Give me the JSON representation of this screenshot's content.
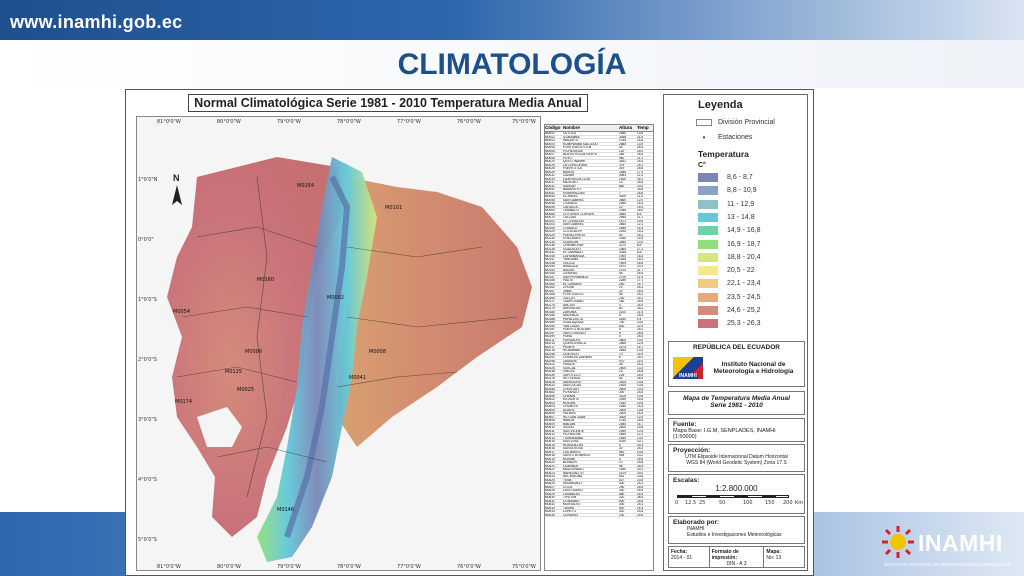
{
  "header": {
    "url": "www.inamhi.gob.ec",
    "title": "CLIMATOLOGÍA"
  },
  "map": {
    "title": "Normal Climatológica Serie 1981 - 2010 Temperatura Media Anual",
    "north_label": "N",
    "top_coords": [
      "81°0'0\"W",
      "80°0'0\"W",
      "79°0'0\"W",
      "78°0'0\"W",
      "77°0'0\"W",
      "76°0'0\"W",
      "75°0'0\"W"
    ],
    "bottom_coords": [
      "81°0'0\"W",
      "80°0'0\"W",
      "79°0'0\"W",
      "78°0'0\"W",
      "77°0'0\"W",
      "76°0'0\"W",
      "75°0'0\"W"
    ],
    "left_coords": [
      "1°0'0\"N",
      "0°0'0\"",
      "1°0'0\"S",
      "2°0'0\"S",
      "3°0'0\"S",
      "4°0'0\"S",
      "5°0'0\"S"
    ],
    "right_coords": [
      "1°0'0\"N",
      "0°0'0\"",
      "1°0'0\"S",
      "2°0'0\"S",
      "3°0'0\"S",
      "4°0'0\"S",
      "5°0'0\"S"
    ],
    "station_labels": [
      "M0101",
      "M0154",
      "M0054",
      "M0006",
      "M0008",
      "M0125",
      "M0025",
      "M0160",
      "M0146",
      "M0174",
      "M0041",
      "M0002"
    ]
  },
  "stations_table": {
    "headers": [
      "Código",
      "Nombre",
      "Altura",
      "Temp"
    ],
    "rows": [
      [
        "M0001",
        "LA TOLA",
        "2480",
        "13,5"
      ],
      [
        "M0002",
        "IZOBAMBA",
        "3058",
        "11,8"
      ],
      [
        "M0003",
        "INAQUITO",
        "2789",
        "14,6"
      ],
      [
        "M0004",
        "RUMIPAMBA SALCEDO",
        "2685",
        "13,9"
      ],
      [
        "M0005",
        "PORTOVIEJO UTM",
        "44",
        "25,4"
      ],
      [
        "M0006",
        "PICHILINGUE",
        "120",
        "25,0"
      ],
      [
        "M0007",
        "NUEVO ROCAFUERTE",
        "265",
        "25,9"
      ],
      [
        "M0008",
        "PUYO",
        "960",
        "21,2"
      ],
      [
        "M0024",
        "QUITO INAMHI",
        "2812",
        "14,0"
      ],
      [
        "M0025",
        "LA CONCORDIA",
        "379",
        "24,2"
      ],
      [
        "M0026",
        "PUERTO ILA",
        "319",
        "24,6"
      ],
      [
        "M0029",
        "BAÑOS",
        "1846",
        "17,9"
      ],
      [
        "M0031",
        "CAÑAR",
        "3083",
        "11,5"
      ],
      [
        "M0033",
        "LA ARGELIA LOJA",
        "2160",
        "16,1"
      ],
      [
        "M0037",
        "MILAGRO",
        "13",
        "25,6"
      ],
      [
        "M0041",
        "SANGAY",
        "880",
        "23,0"
      ],
      [
        "M0051",
        "BABAHOYO",
        "7",
        "25,8"
      ],
      [
        "M0052",
        "ESMERALDAS",
        "7",
        "25,6"
      ],
      [
        "M0053",
        "EL ANGEL",
        "3000",
        "11,0"
      ],
      [
        "M0056",
        "SAN GABRIEL",
        "2860",
        "12,0"
      ],
      [
        "M0058",
        "OTAVALO",
        "2550",
        "14,5"
      ],
      [
        "M0059",
        "CARACOL",
        "20",
        "25,4"
      ],
      [
        "M0063",
        "TUMBACO",
        "2348",
        "16,0"
      ],
      [
        "M0066",
        "COTOPAXI CLIRSEN",
        "3560",
        "8,6"
      ],
      [
        "M0070",
        "TULCAN",
        "2950",
        "11,1"
      ],
      [
        "M0101",
        "EL CORAZON",
        "1471",
        "19,6"
      ],
      [
        "M0103",
        "SAN GABRIEL",
        "2860",
        "12,1"
      ],
      [
        "M0105",
        "OTAVALO",
        "2550",
        "14,4"
      ],
      [
        "M0120",
        "COTACACHI",
        "2430",
        "15,3"
      ],
      [
        "M0125",
        "PUEBLOVIEJO",
        "40",
        "25,2"
      ],
      [
        "M0130",
        "CHILLANES",
        "2330",
        "14,9"
      ],
      [
        "M0133",
        "GUASLAN",
        "2850",
        "13,4"
      ],
      [
        "M0136",
        "CHIRIMICHAY",
        "3270",
        "8,9"
      ],
      [
        "M0139",
        "GUALACEO",
        "2360",
        "17,2"
      ],
      [
        "M0141",
        "EL LABRADO",
        "3335",
        "8,8"
      ],
      [
        "M0146",
        "CARIAMANGA",
        "1950",
        "18,3"
      ],
      [
        "M0147",
        "YANGANA",
        "1835",
        "19,2"
      ],
      [
        "M0148",
        "CELICA",
        "1904",
        "16,6"
      ],
      [
        "M0150",
        "AMALUZA",
        "1672",
        "20,1"
      ],
      [
        "M0153",
        "MACAS",
        "1070",
        "21,7"
      ],
      [
        "M0154",
        "CAYAPAS",
        "55",
        "25,4"
      ],
      [
        "M0157",
        "SAN FERNANDO",
        "2700",
        "11,4"
      ],
      [
        "M0158",
        "PAUTE",
        "2289",
        "17,1"
      ],
      [
        "M0160",
        "EL CARMEN",
        "250",
        "24,7"
      ],
      [
        "M0162",
        "CHONE",
        "20",
        "25,3"
      ],
      [
        "M0167",
        "JAMA",
        "20",
        "25,4"
      ],
      [
        "M0168",
        "PORTOVIEJO",
        "46",
        "25,2"
      ],
      [
        "M0169",
        "JULCUY",
        "230",
        "24,2"
      ],
      [
        "M0171",
        "CAMPOSANO",
        "160",
        "24,6"
      ],
      [
        "M0174",
        "ANCON",
        "3",
        "24,0"
      ],
      [
        "M0179",
        "ARENILLAS",
        "60",
        "25,2"
      ],
      [
        "M0180",
        "ZARUMA",
        "1100",
        "21,6"
      ],
      [
        "M0185",
        "MACHALA",
        "6",
        "25,4"
      ],
      [
        "M0188",
        "PAPALLACTA",
        "3150",
        "9,4"
      ],
      [
        "M0189",
        "GUALAQUIZA",
        "750",
        "23,0"
      ],
      [
        "M0190",
        "YANTZAZA",
        "830",
        "22,4"
      ],
      [
        "M0191",
        "PUERTO BOLIVAR",
        "5",
        "25,2"
      ],
      [
        "M0197",
        "SAN LORENZO",
        "8",
        "25,6"
      ],
      [
        "M0199",
        "PUNA",
        "5",
        "25,4"
      ],
      [
        "M0211",
        "PUNGALES",
        "2800",
        "13,0"
      ],
      [
        "M0214",
        "QUEROCHACA",
        "2865",
        "12,8"
      ],
      [
        "M0217",
        "PENIPE",
        "2475",
        "14,7"
      ],
      [
        "M0218",
        "RIOBAMBA",
        "2850",
        "13,9"
      ],
      [
        "M0258",
        "QUEVEDO",
        "70",
        "24,9"
      ],
      [
        "M0291",
        "CHARLES DARWIN",
        "6",
        "24,0"
      ],
      [
        "M0298",
        "ZAMORA",
        "970",
        "22,0"
      ],
      [
        "M0322",
        "PASAJE",
        "28",
        "25,3"
      ],
      [
        "M0326",
        "SUSCAL",
        "2600",
        "13,3"
      ],
      [
        "M0338",
        "VINCES",
        "15",
        "25,8"
      ],
      [
        "M0339",
        "ZAPOTILLO",
        "225",
        "25,4"
      ],
      [
        "M0378",
        "RIO VERDE",
        "40",
        "25,4"
      ],
      [
        "M0426",
        "SARAGURO",
        "2525",
        "13,6"
      ],
      [
        "M0432",
        "SAN LUCAS",
        "2525",
        "13,6"
      ],
      [
        "M0448",
        "CHONTALI",
        "2600",
        "13,4"
      ],
      [
        "M0482",
        "PUYANGO",
        "300",
        "24,6"
      ],
      [
        "M0496",
        "CHANIN",
        "3100",
        "10,6"
      ],
      [
        "M0502",
        "RICAURTE",
        "2390",
        "14,6"
      ],
      [
        "M0503",
        "HUIGRA",
        "1180",
        "20,5"
      ],
      [
        "M0504",
        "CHUNCHI",
        "2280",
        "14,4"
      ],
      [
        "M0505",
        "ALAUSI",
        "2600",
        "13,8"
      ],
      [
        "M0506",
        "PALMAS",
        "2400",
        "14,5"
      ],
      [
        "M0507",
        "RIO SAN JUAN",
        "3000",
        "12,0"
      ],
      [
        "M0508",
        "NABON",
        "2750",
        "14,8"
      ],
      [
        "M0509",
        "BIBLIAN",
        "2640",
        "14,7"
      ],
      [
        "M0510",
        "SIGSIG",
        "2500",
        "15,5"
      ],
      [
        "M0511",
        "SAN VICENTE",
        "2950",
        "10,4"
      ],
      [
        "M0512",
        "PICHINCHA",
        "2850",
        "12,1"
      ],
      [
        "M0513",
        "TOMEBAMBA",
        "2540",
        "13,0"
      ],
      [
        "M0514",
        "SAN JOSE",
        "3010",
        "10,7"
      ],
      [
        "M0515",
        "HUAQUILLAS",
        "5",
        "25,3"
      ],
      [
        "M0516",
        "SANTA ROSA",
        "30",
        "25,3"
      ],
      [
        "M0517",
        "LAS NAVES",
        "540",
        "23,6"
      ],
      [
        "M0518",
        "SANTO DOMINGO",
        "554",
        "23,2"
      ],
      [
        "M0519",
        "MUISNE",
        "4",
        "25,6"
      ],
      [
        "M0520",
        "BORBON",
        "10",
        "25,8"
      ],
      [
        "M0521",
        "QUININDE",
        "98",
        "25,4"
      ],
      [
        "M0522",
        "MALDONADO",
        "1450",
        "20,2"
      ],
      [
        "M0523",
        "NANEGALITO",
        "1579",
        "19,0"
      ],
      [
        "M0524",
        "ARCHIDONA",
        "602",
        "23,6"
      ],
      [
        "M0525",
        "TENA",
        "527",
        "23,8"
      ],
      [
        "M0526",
        "MISAHUALLI",
        "400",
        "24,3"
      ],
      [
        "M0527",
        "COCA",
        "290",
        "25,6"
      ],
      [
        "M0528",
        "LAGO AGRIO",
        "300",
        "25,5"
      ],
      [
        "M0529",
        "LUMBAQUI",
        "580",
        "24,5"
      ],
      [
        "M0530",
        "TIPUTINI",
        "220",
        "26,0"
      ],
      [
        "M0531",
        "CONAMBO",
        "600",
        "24,6"
      ],
      [
        "M0532",
        "MONTALVO",
        "300",
        "25,1"
      ],
      [
        "M0533",
        "TAISHA",
        "500",
        "24,3"
      ],
      [
        "M0534",
        "LORETO",
        "410",
        "24,8"
      ],
      [
        "M0535",
        "CURARAY",
        "230",
        "25,5"
      ]
    ]
  },
  "legend": {
    "title": "Leyenda",
    "division_label": "División Provincial",
    "stations_label": "Estaciones",
    "temperature_title": "Temperatura",
    "unit": "C°",
    "classes": [
      {
        "label": "8,6 - 8,7",
        "color": "#7b86b7"
      },
      {
        "label": "8,8 - 10,9",
        "color": "#8aa2c8"
      },
      {
        "label": "11 - 12,9",
        "color": "#8fc2c5"
      },
      {
        "label": "13 - 14,8",
        "color": "#62c9d8"
      },
      {
        "label": "14,9 - 16,8",
        "color": "#6fd1a8"
      },
      {
        "label": "16,9 - 18,7",
        "color": "#93dd7b"
      },
      {
        "label": "18,8 - 20,4",
        "color": "#d6e67a"
      },
      {
        "label": "20,5 - 22",
        "color": "#f5e88e"
      },
      {
        "label": "22,1 - 23,4",
        "color": "#f3cb7e"
      },
      {
        "label": "23,5 - 24,5",
        "color": "#e7a97a"
      },
      {
        "label": "24,6 - 25,2",
        "color": "#d58b7b"
      },
      {
        "label": "25,3 - 26,3",
        "color": "#c9727b"
      }
    ],
    "country": "REPÚBLICA DEL ECUADOR",
    "institute_line1": "Instituto Nacional de",
    "institute_line2": "Meteorología e Hidrología",
    "logo_text": "INAMHI",
    "map_name_line1": "Mapa de Temperatura Media Anual",
    "map_name_line2": "Serie 1981 - 2010",
    "source_label": "Fuente:",
    "source_value": "Mapa Base: I.G.M, SENPLADES, INAMHI (1:50000)",
    "projection_label": "Proyección:",
    "projection_value1": "UTM Elipsoide Internacional Datum Horizontal",
    "projection_value2": "WGS 84 (World Geodetic System) Zona 17 S",
    "scale_label": "Escalas:",
    "scale_value": "1:2.800.000",
    "scale_ticks": [
      "0",
      "12.5",
      "25",
      "50",
      "100",
      "150",
      "200"
    ],
    "scale_unit": "Km",
    "made_by_label": "Elaborado por:",
    "made_by_value1": "INAMHI",
    "made_by_value2": "Estudios e Investigaciones Meteorológicas",
    "footer_headers": [
      "Fecha:",
      "Formato de impresión:",
      "Mapa:"
    ],
    "footer_values": [
      "2014 - 01",
      "DIN - A 3",
      "No: 13"
    ]
  },
  "footer_logo": {
    "text": "INAMHI",
    "subtitle": "INSTITUTO NACIONAL DE METEOROLOGÍA E HIDROLOGÍA"
  }
}
